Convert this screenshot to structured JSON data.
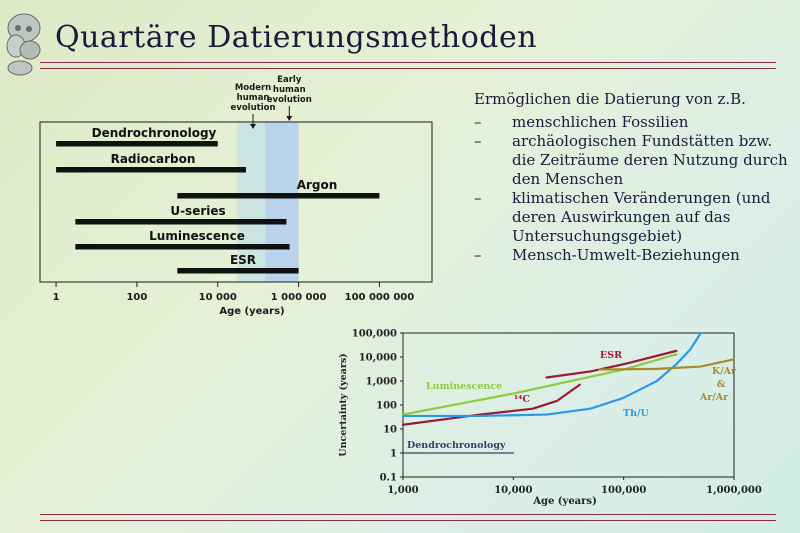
{
  "slide": {
    "title": "Quartäre Datierungsmethoden"
  },
  "text_block": {
    "intro": "Ermöglichen die Datierung von z.B.",
    "items": [
      "menschlichen Fossilien",
      "archäologischen Fundstätten bzw. die Zeiträume deren Nutzung durch den Menschen",
      "klimatischen Veränderungen (und deren Auswirkungen auf das Untersuchungsgebiet)",
      "Mensch-Umwelt-Beziehungen"
    ],
    "bullet": "–"
  },
  "range_diagram": {
    "methods": [
      {
        "name": "Dendrochronology",
        "start": 1,
        "end": 10000
      },
      {
        "name": "Radiocarbon",
        "start": 1,
        "end": 50000
      },
      {
        "name": "Argon",
        "start": 1000,
        "end": 100000000
      },
      {
        "name": "U-series",
        "start": 3,
        "end": 500000
      },
      {
        "name": "Luminescence",
        "start": 3,
        "end": 600000
      },
      {
        "name": "ESR",
        "start": 1000,
        "end": 1000000
      }
    ],
    "bands": [
      {
        "label": "Modern human evolution",
        "start": 30000,
        "end": 150000,
        "color": "#cce4e0"
      },
      {
        "label": "Early human evolution",
        "start": 150000,
        "end": 1000000,
        "color": "#b9d3ea"
      }
    ],
    "x_ticks": [
      "1",
      "100",
      "10 000",
      "1 000 000",
      "100 000 000"
    ],
    "x_tick_values": [
      1,
      100,
      10000,
      1000000,
      100000000
    ],
    "xlabel": "Age (years)",
    "xlim": [
      0.4,
      2000000000
    ]
  },
  "chart_data": {
    "type": "line",
    "xlabel": "Age (years)",
    "ylabel": "Uncertainty (years)",
    "x_scale": "log",
    "y_scale": "log",
    "xlim": [
      1000,
      1000000
    ],
    "ylim": [
      0.1,
      100000
    ],
    "x_ticks": [
      "1,000",
      "10,000",
      "100,000",
      "1,000,000"
    ],
    "x_tick_values": [
      1000,
      10000,
      100000,
      1000000
    ],
    "y_ticks": [
      "100,000",
      "10,000",
      "1,000",
      "100",
      "10",
      "1",
      "0.1"
    ],
    "y_tick_values": [
      100000,
      10000,
      1000,
      100,
      10,
      1,
      0.1
    ],
    "series": [
      {
        "name": "Dendrochronology",
        "color": "#3a3a6a",
        "points": [
          [
            1000,
            1
          ],
          [
            10000,
            1
          ]
        ]
      },
      {
        "name": "Luminescence",
        "color": "#8ccc3c",
        "points": [
          [
            1000,
            40
          ],
          [
            10000,
            300
          ],
          [
            100000,
            3000
          ],
          [
            300000,
            13000
          ]
        ]
      },
      {
        "name": "¹⁴C",
        "color": "#9a1a3a",
        "points": [
          [
            1000,
            15
          ],
          [
            5000,
            40
          ],
          [
            15000,
            70
          ],
          [
            25000,
            150
          ],
          [
            40000,
            700
          ]
        ]
      },
      {
        "name": "ESR",
        "color": "#9a1a3a",
        "points": [
          [
            20000,
            1400
          ],
          [
            50000,
            2500
          ],
          [
            100000,
            5000
          ],
          [
            300000,
            18000
          ]
        ]
      },
      {
        "name": "Th/U",
        "color": "#2a9ae6",
        "points": [
          [
            1000,
            35
          ],
          [
            5000,
            35
          ],
          [
            20000,
            40
          ],
          [
            50000,
            70
          ],
          [
            100000,
            200
          ],
          [
            200000,
            1000
          ],
          [
            300000,
            5000
          ],
          [
            400000,
            20000
          ],
          [
            500000,
            100000
          ]
        ]
      },
      {
        "name": "K/Ar & Ar/Ar",
        "color": "#a88a2a",
        "points": [
          [
            60000,
            3000
          ],
          [
            200000,
            3200
          ],
          [
            500000,
            4000
          ],
          [
            1000000,
            8000
          ]
        ]
      }
    ],
    "label_K": "K/Ar",
    "label_amp": "&",
    "label_ArAr": "Ar/Ar"
  }
}
